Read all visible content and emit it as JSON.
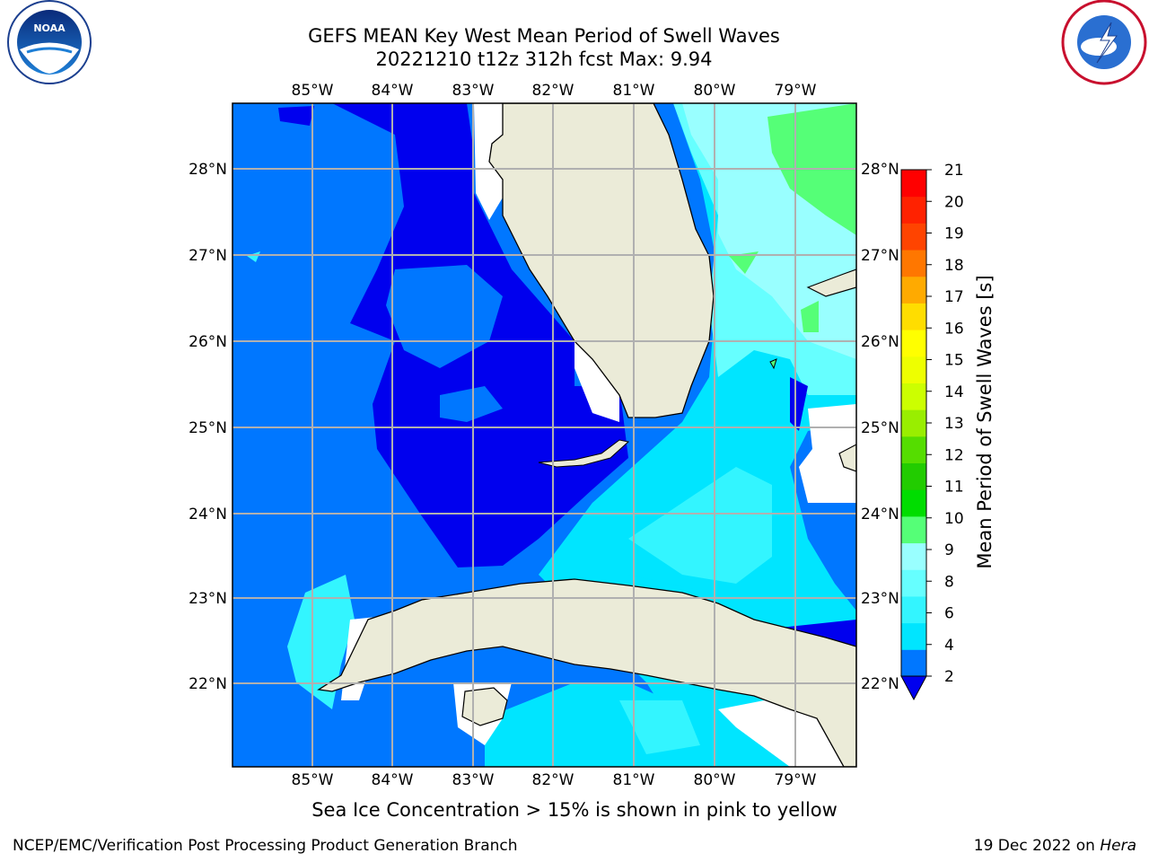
{
  "title_line1": "GEFS MEAN Key West Mean Period of Swell Waves",
  "title_line2": "20221210 t12z 312h fcst   Max: 9.94",
  "lon_labels": [
    "85°W",
    "84°W",
    "83°W",
    "82°W",
    "81°W",
    "80°W",
    "79°W"
  ],
  "lat_labels": [
    "28°N",
    "27°N",
    "26°N",
    "25°N",
    "24°N",
    "23°N",
    "22°N"
  ],
  "colorbar": {
    "label": "Mean Period of Swell Waves [s]",
    "ticks": [
      "2",
      "4",
      "6",
      "8",
      "9",
      "10",
      "11",
      "12",
      "13",
      "14",
      "15",
      "16",
      "17",
      "18",
      "19",
      "20",
      "21"
    ],
    "colors": [
      "#0077ff",
      "#00e5ff",
      "#33f5ff",
      "#66ffff",
      "#99ffff",
      "#55ff77",
      "#00dd00",
      "#22cc00",
      "#55dd00",
      "#99ee00",
      "#ccff00",
      "#eeff00",
      "#ffff00",
      "#ffdd00",
      "#ffaa00",
      "#ff7700",
      "#ff4400",
      "#ff2200",
      "#ff0000"
    ],
    "under_color": "#0000ee"
  },
  "ice_note": "Sea Ice Concentration > 15% is shown in pink to yellow",
  "footer_left": "NCEP/EMC/Verification Post Processing Product Generation Branch",
  "footer_right_prefix": "19 Dec 2022 on ",
  "footer_right_host": "Hera",
  "logos": {
    "left": "NOAA",
    "right": "NATIONAL WEATHER SERVICE"
  }
}
